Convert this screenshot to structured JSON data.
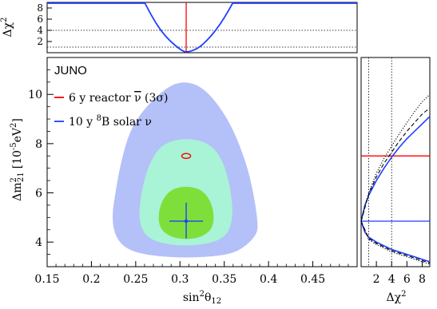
{
  "chart_data": [
    {
      "type": "line",
      "panel": "top",
      "ylabel": "Δχ²",
      "ylabel_main": "Δχ",
      "ylabel_sup": "2",
      "xlim": [
        0.15,
        0.5
      ],
      "ylim": [
        0,
        9
      ],
      "yticks": [
        2,
        4,
        6,
        8
      ],
      "ytick_labels": [
        "2",
        "4",
        "6",
        "8"
      ],
      "reference_lines": [
        1,
        4,
        9
      ],
      "series": [
        {
          "name": "6 y reactor ν̄ (3σ)",
          "color": "#ff0000",
          "kind": "vertical-line",
          "x": 0.307
        },
        {
          "name": "10 y ⁸B solar ν",
          "color": "#1f3fff",
          "kind": "curve",
          "x": [
            0.26,
            0.27,
            0.28,
            0.29,
            0.3,
            0.307,
            0.32,
            0.33,
            0.34,
            0.35,
            0.36
          ],
          "y": [
            9.0,
            6.0,
            3.6,
            1.9,
            0.6,
            0.0,
            0.7,
            2.1,
            3.9,
            6.2,
            9.0
          ]
        }
      ]
    },
    {
      "type": "contour",
      "panel": "main",
      "title": "JUNO",
      "xlabel": "sin²θ₁₂",
      "xlabel_main": "sin",
      "xlabel_sup": "2",
      "xlabel_after": "θ",
      "xlabel_sub": "12",
      "ylabel_main": "Δm",
      "ylabel_sup": "2",
      "ylabel_sub": "21",
      "ylabel_unit": "[10",
      "ylabel_unit_sup": "-5",
      "ylabel_unit_end": "eV",
      "ylabel_unit_sup2": "2",
      "ylabel_close": "]",
      "xlim": [
        0.15,
        0.5
      ],
      "ylim": [
        3,
        11.5
      ],
      "xticks": [
        0.15,
        0.2,
        0.25,
        0.3,
        0.35,
        0.4,
        0.45
      ],
      "xtick_labels": [
        "0.15",
        "0.2",
        "0.25",
        "0.3",
        "0.35",
        "0.4",
        "0.45"
      ],
      "yticks": [
        4,
        6,
        8,
        10
      ],
      "ytick_labels": [
        "4",
        "6",
        "8",
        "10"
      ],
      "legend": [
        {
          "label_main": "6 y reactor ",
          "label_nu": "ν",
          "label_end": " (3σ)",
          "color": "#ff0000"
        },
        {
          "label_main": "10 y ",
          "label_sup": "8",
          "label_end": "B solar ν",
          "color": "#1f3fff"
        }
      ],
      "legend_placement": "top-left",
      "best_fit": {
        "x": 0.307,
        "y": 4.85,
        "x_err": [
          0.288,
          0.326
        ],
        "y_err": [
          4.15,
          5.6
        ]
      },
      "reactor_ellipse": {
        "x": 0.307,
        "y": 7.5,
        "dx": 0.005,
        "dy": 0.1
      },
      "regions": [
        {
          "name": "3σ",
          "color": "#b4c0f8",
          "points": [
            [
              0.259,
              9.4
            ],
            [
              0.285,
              10.3
            ],
            [
              0.305,
              10.55
            ],
            [
              0.325,
              10.3
            ],
            [
              0.343,
              9.6
            ],
            [
              0.36,
              8.6
            ],
            [
              0.375,
              7.2
            ],
            [
              0.383,
              6.0
            ],
            [
              0.388,
              4.8
            ],
            [
              0.387,
              4.3
            ],
            [
              0.37,
              3.7
            ],
            [
              0.35,
              3.45
            ],
            [
              0.307,
              3.35
            ],
            [
              0.265,
              3.45
            ],
            [
              0.24,
              3.7
            ],
            [
              0.227,
              4.2
            ],
            [
              0.223,
              5.0
            ],
            [
              0.227,
              6.0
            ],
            [
              0.233,
              7.2
            ],
            [
              0.243,
              8.5
            ]
          ]
        },
        {
          "name": "2σ",
          "color": "#a9f3d7",
          "points": [
            [
              0.28,
              8.0
            ],
            [
              0.307,
              8.25
            ],
            [
              0.335,
              8.0
            ],
            [
              0.35,
              7.2
            ],
            [
              0.358,
              6.0
            ],
            [
              0.36,
              4.8
            ],
            [
              0.348,
              4.05
            ],
            [
              0.307,
              3.8
            ],
            [
              0.265,
              4.05
            ],
            [
              0.253,
              4.8
            ],
            [
              0.256,
              6.0
            ],
            [
              0.265,
              7.2
            ]
          ]
        },
        {
          "name": "1σ",
          "color": "#7fdf3a",
          "points": [
            [
              0.287,
              6.1
            ],
            [
              0.307,
              6.3
            ],
            [
              0.327,
              6.1
            ],
            [
              0.338,
              5.4
            ],
            [
              0.338,
              4.6
            ],
            [
              0.325,
              4.2
            ],
            [
              0.307,
              4.1
            ],
            [
              0.289,
              4.2
            ],
            [
              0.276,
              4.6
            ],
            [
              0.276,
              5.4
            ]
          ]
        }
      ]
    },
    {
      "type": "line",
      "panel": "right",
      "xlabel_main": "Δχ",
      "xlabel_sup": "2",
      "xlim": [
        0,
        9
      ],
      "ylim": [
        3,
        11.5
      ],
      "xticks": [
        2,
        4,
        6,
        8
      ],
      "xtick_labels": [
        "2",
        "4",
        "6",
        "8"
      ],
      "reference_lines": [
        1,
        4
      ],
      "horizontal_lines": [
        {
          "y": 7.5,
          "color": "#ff0000"
        },
        {
          "y": 4.85,
          "color": "#1f3fff"
        }
      ],
      "series": [
        {
          "color": "#1f3fff",
          "style": "solid",
          "upper": [
            [
              0,
              4.85
            ],
            [
              0.5,
              5.5
            ],
            [
              1,
              5.9
            ],
            [
              2,
              6.5
            ],
            [
              3,
              7.0
            ],
            [
              4,
              7.45
            ],
            [
              5,
              7.85
            ],
            [
              6,
              8.2
            ],
            [
              7,
              8.5
            ],
            [
              8,
              8.8
            ],
            [
              9,
              9.1
            ]
          ],
          "lower": [
            [
              0,
              4.85
            ],
            [
              0.5,
              4.4
            ],
            [
              1,
              4.2
            ],
            [
              2,
              4.0
            ],
            [
              3,
              3.85
            ],
            [
              4,
              3.7
            ],
            [
              5,
              3.6
            ],
            [
              6,
              3.5
            ],
            [
              7,
              3.4
            ],
            [
              8,
              3.3
            ],
            [
              9,
              3.2
            ]
          ]
        },
        {
          "color": "#000000",
          "style": "dashed",
          "upper": [
            [
              0,
              4.85
            ],
            [
              1,
              5.95
            ],
            [
              2,
              6.65
            ],
            [
              3,
              7.2
            ],
            [
              4,
              7.65
            ],
            [
              5,
              8.1
            ],
            [
              6,
              8.5
            ],
            [
              7,
              8.85
            ],
            [
              8,
              9.2
            ],
            [
              9,
              9.45
            ]
          ],
          "lower": [
            [
              0,
              4.85
            ],
            [
              1,
              4.15
            ],
            [
              2,
              3.95
            ],
            [
              3,
              3.8
            ],
            [
              4,
              3.65
            ],
            [
              5,
              3.55
            ],
            [
              6,
              3.45
            ],
            [
              7,
              3.35
            ],
            [
              8,
              3.25
            ],
            [
              9,
              3.15
            ]
          ]
        },
        {
          "color": "#000000",
          "style": "dotted",
          "upper": [
            [
              0,
              4.85
            ],
            [
              1,
              6.0
            ],
            [
              2,
              6.8
            ],
            [
              3,
              7.4
            ],
            [
              4,
              7.9
            ],
            [
              5,
              8.4
            ],
            [
              6,
              8.85
            ],
            [
              7,
              9.3
            ],
            [
              8,
              9.7
            ],
            [
              9,
              10.0
            ]
          ],
          "lower": [
            [
              0,
              4.85
            ],
            [
              1,
              4.1
            ],
            [
              2,
              3.9
            ],
            [
              3,
              3.75
            ],
            [
              4,
              3.6
            ],
            [
              5,
              3.5
            ],
            [
              6,
              3.4
            ],
            [
              7,
              3.3
            ],
            [
              8,
              3.2
            ],
            [
              9,
              3.1
            ]
          ]
        }
      ]
    }
  ]
}
